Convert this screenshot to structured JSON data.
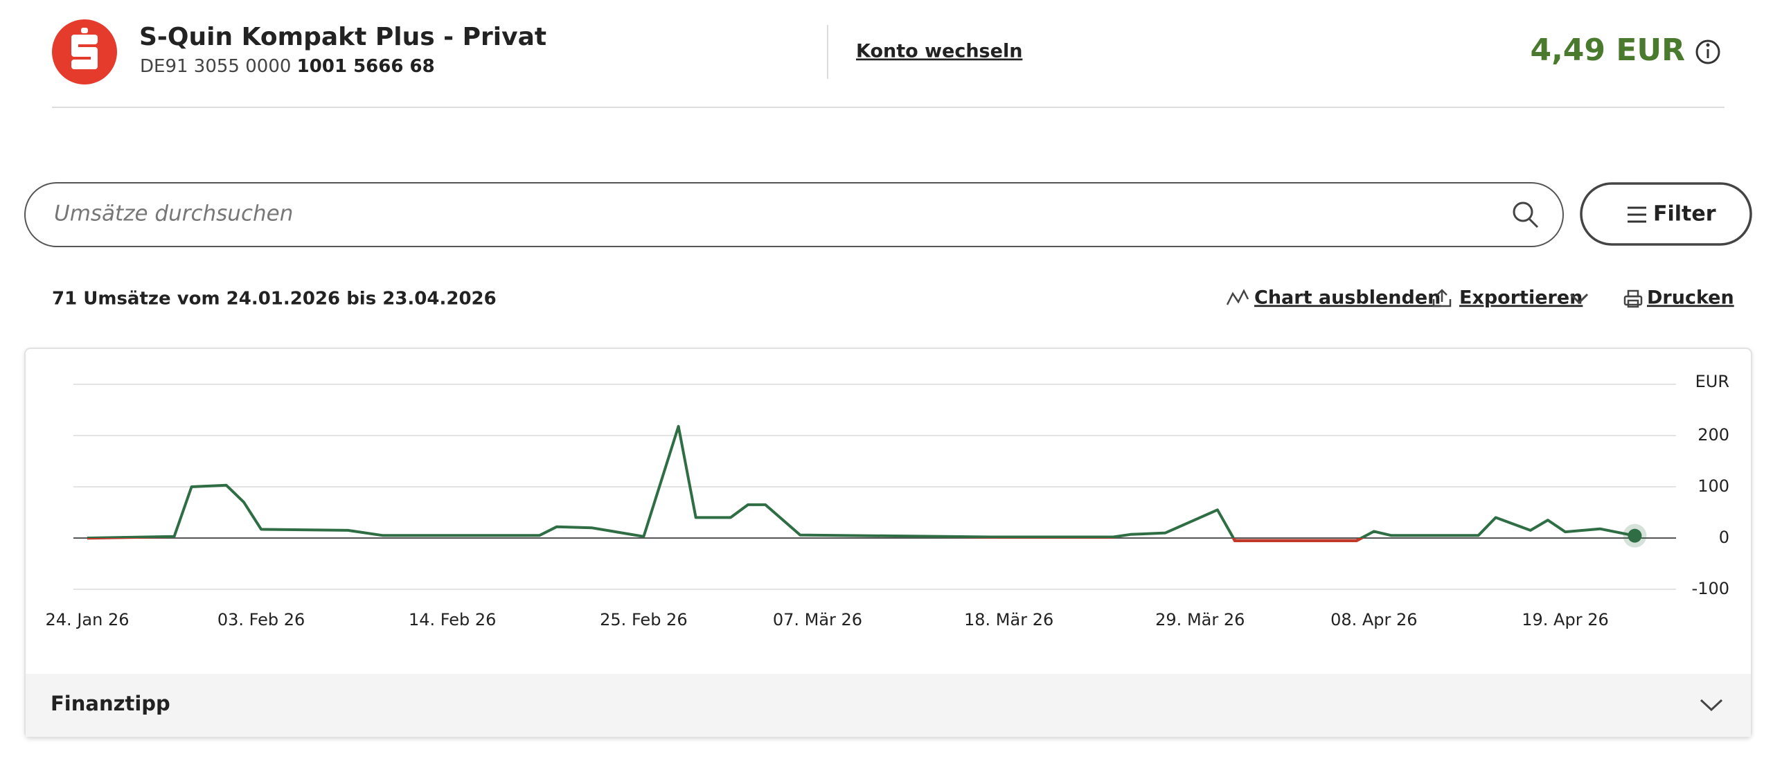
{
  "header": {
    "account_name": "S-Quin Kompakt Plus - Privat",
    "iban_prefix": "DE91 3055 0000",
    "iban_suffix": "1001 5666 68",
    "switch_link": "Konto wechseln",
    "balance": "4,49 EUR"
  },
  "search": {
    "placeholder": "Umsätze durchsuchen",
    "filter_button": "Filter"
  },
  "summary": "71 Umsätze vom 24.01.2026 bis 23.04.2026",
  "actions": [
    "Chart ausblenden",
    "Exportieren",
    "Drucken"
  ],
  "chart_data": {
    "type": "line",
    "y_unit": "EUR",
    "color": "#2f6e45",
    "negative_color": "#c0392b",
    "grid": true,
    "x": [
      "2026-01-24",
      "2026-01-29",
      "2026-01-30",
      "2026-02-01",
      "2026-02-02",
      "2026-02-03",
      "2026-02-08",
      "2026-02-10",
      "2026-02-19",
      "2026-02-20",
      "2026-02-22",
      "2026-02-25",
      "2026-02-27",
      "2026-02-28",
      "2026-03-02",
      "2026-03-03",
      "2026-03-04",
      "2026-03-06",
      "2026-03-17",
      "2026-03-24",
      "2026-03-25",
      "2026-03-27",
      "2026-03-30",
      "2026-03-31",
      "2026-04-07",
      "2026-04-08",
      "2026-04-09",
      "2026-04-14",
      "2026-04-15",
      "2026-04-17",
      "2026-04-18",
      "2026-04-19",
      "2026-04-21",
      "2026-04-23"
    ],
    "values": [
      0,
      3,
      100,
      103,
      70,
      17,
      15,
      5,
      5,
      22,
      20,
      3,
      218,
      40,
      40,
      65,
      65,
      6,
      2,
      2,
      7,
      10,
      55,
      -5,
      -5,
      13,
      5,
      5,
      40,
      15,
      35,
      12,
      18,
      4.49
    ],
    "ylim": [
      -100,
      300
    ],
    "yticks": [
      -100,
      0,
      100,
      200
    ],
    "xticks": [
      {
        "value": "2026-01-24",
        "label": "24. Jan 26"
      },
      {
        "value": "2026-02-03",
        "label": "03. Feb 26"
      },
      {
        "value": "2026-02-14",
        "label": "14. Feb 26"
      },
      {
        "value": "2026-02-25",
        "label": "25. Feb 26"
      },
      {
        "value": "2026-03-07",
        "label": "07. Mär 26"
      },
      {
        "value": "2026-03-18",
        "label": "18. Mär 26"
      },
      {
        "value": "2026-03-29",
        "label": "29. Mär 26"
      },
      {
        "value": "2026-04-08",
        "label": "08. Apr 26"
      },
      {
        "value": "2026-04-19",
        "label": "19. Apr 26"
      }
    ]
  },
  "finanztipp": "Finanztipp"
}
